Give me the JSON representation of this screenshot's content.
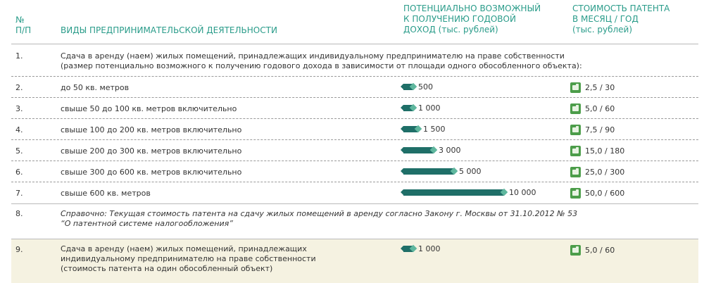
{
  "header": {
    "num_line1": "№",
    "num_line2": "П/П",
    "activity": "ВИДЫ ПРЕДПРИНИМАТЕЛЬСКОЙ ДЕЯТЕЛЬНОСТИ",
    "income_line1": "ПОТЕНЦИАЛЬНО ВОЗМОЖНЫЙ",
    "income_line2": "К ПОЛУЧЕНИЮ ГОДОВОЙ",
    "income_line3": "ДОХОД (тыс. рублей)",
    "cost_line1": "СТОИМОСТЬ ПАТЕНТА",
    "cost_line2": "В МЕСЯЦ / ГОД",
    "cost_line3": "(тыс. рублей)"
  },
  "row1": {
    "num": "1.",
    "line1": "Сдача в аренду (наем) жилых помещений, принадлежащих индивидуальному предпринимателю на праве собственности",
    "line2": "(размер потенциально возможного к получению годового дохода в зависимости от площади одного обособленного объекта):"
  },
  "rows": [
    {
      "num": "2.",
      "label": "до 50 кв. метров",
      "income_label": "500",
      "income": 500,
      "cost": "2,5 / 30"
    },
    {
      "num": "3.",
      "label": "свыше 50 до 100 кв. метров включительно",
      "income_label": "1 000",
      "income": 1000,
      "cost": "5,0 / 60"
    },
    {
      "num": "4.",
      "label": "свыше 100 до 200 кв. метров включительно",
      "income_label": "1 500",
      "income": 1500,
      "cost": "7,5 / 90"
    },
    {
      "num": "5.",
      "label": "свыше 200 до 300 кв. метров включительно",
      "income_label": "3 000",
      "income": 3000,
      "cost": "15,0 / 180"
    },
    {
      "num": "6.",
      "label": "свыше 300 до 600 кв. метров включительно",
      "income_label": "5 000",
      "income": 5000,
      "cost": "25,0 / 300"
    },
    {
      "num": "7.",
      "label": "свыше 600 кв. метров",
      "income_label": "10 000",
      "income": 10000,
      "cost": "50,0 / 600"
    }
  ],
  "row8": {
    "num": "8.",
    "prefix": "Справочно",
    "line1": ": Текущая стоимость патента на сдачу жилых помещений в аренду согласно Закону г. Москвы от 31.10.2012 № 53",
    "line2": "“О патентной системе налогообложения”"
  },
  "row9": {
    "num": "9.",
    "line1": "Сдача в аренду (наем) жилых помещений, принадлежащих",
    "line2": "индивидуальному предпринимателю на праве собственности",
    "line3": "(стоимость патента на один обособленный объект)",
    "income_label": "1 000",
    "income": 1000,
    "cost": "5,0 / 60"
  },
  "colors": {
    "header": "#2a9c8a",
    "bar": "#1f6f68",
    "bar_tip": "#5fb79e",
    "cost_icon": "#4c9d4a",
    "highlight": "#f5f2e1"
  },
  "icons": {
    "bar": "bar-arrow-icon",
    "cost": "wallet-icon"
  }
}
